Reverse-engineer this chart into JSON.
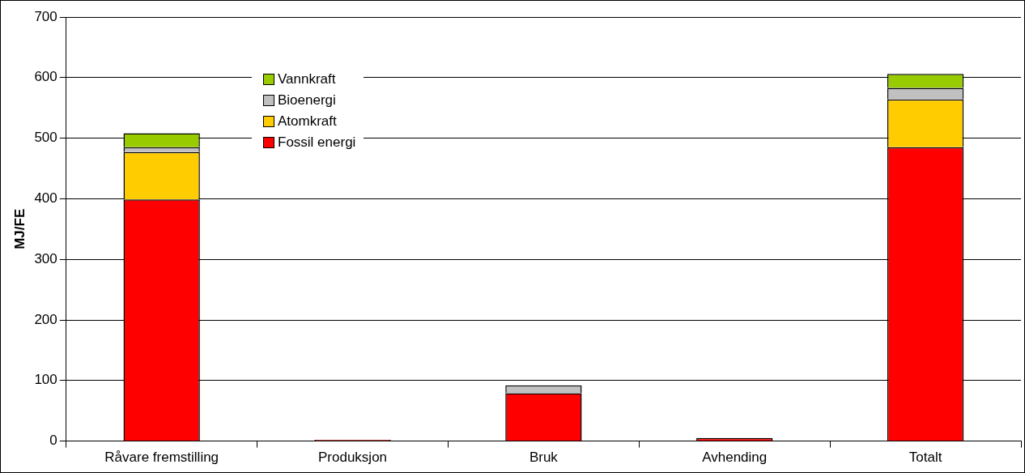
{
  "chart_data": {
    "type": "bar",
    "stacked": true,
    "ylabel": "MJ/FE",
    "categories": [
      "Råvare fremstilling",
      "Produksjon",
      "Bruk",
      "Avhending",
      "Totalt"
    ],
    "series": [
      {
        "name": "Fossil energi",
        "color": "#ff0000",
        "values": [
          399,
          2,
          79,
          5,
          485
        ]
      },
      {
        "name": "Atomkraft",
        "color": "#ffcc00",
        "values": [
          78,
          null,
          null,
          null,
          79
        ]
      },
      {
        "name": "Bioenergi",
        "color": "#c0c0c0",
        "values": [
          8,
          null,
          13,
          null,
          19
        ]
      },
      {
        "name": "Vannkraft",
        "color": "#99cc00",
        "values": [
          23,
          null,
          null,
          null,
          23
        ]
      }
    ],
    "ylim": [
      0,
      700
    ],
    "yticks": [
      0,
      100,
      200,
      300,
      400,
      500,
      600,
      700
    ],
    "grid": "y",
    "legend": "top left"
  }
}
